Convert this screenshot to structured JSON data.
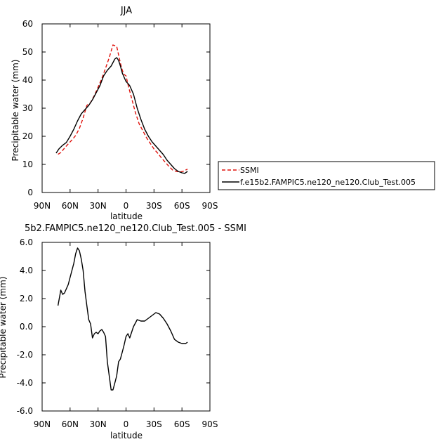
{
  "chart_data": [
    {
      "type": "line",
      "title": "JJA",
      "xlabel": "latitude",
      "ylabel": "Precipitable water (mm)",
      "xlim": [
        90,
        -90
      ],
      "ylim": [
        0,
        60
      ],
      "x_ticks": [
        90,
        60,
        30,
        0,
        -30,
        -60,
        -90
      ],
      "x_tick_labels": [
        "90N",
        "60N",
        "30N",
        "0",
        "30S",
        "60S",
        "90S"
      ],
      "y_ticks": [
        0,
        10,
        20,
        30,
        40,
        50,
        60
      ],
      "y_tick_labels": [
        "0",
        "10",
        "20",
        "30",
        "40",
        "50",
        "60"
      ],
      "legend": {
        "position": "right"
      },
      "series": [
        {
          "name": "SSMI",
          "color": "#e0120c",
          "dash": "dashed",
          "x": [
            73,
            70,
            66,
            62,
            58,
            54,
            50,
            46,
            42,
            38,
            34,
            30,
            26,
            22,
            18,
            14,
            10,
            8,
            6,
            4,
            2,
            0,
            -2,
            -6,
            -10,
            -14,
            -18,
            -22,
            -26,
            -30,
            -34,
            -38,
            -42,
            -46,
            -50,
            -54,
            -58,
            -62,
            -64,
            -66
          ],
          "y": [
            13.6,
            14.2,
            15.8,
            17.3,
            18.7,
            20.3,
            22.8,
            26.5,
            31.0,
            32.0,
            34.5,
            37.5,
            40.5,
            44.2,
            48.0,
            52.5,
            52.0,
            49.0,
            46.0,
            43.5,
            42.0,
            41.5,
            38.5,
            33.5,
            28.5,
            24.5,
            22.0,
            19.5,
            17.5,
            15.5,
            14.0,
            12.3,
            10.8,
            9.3,
            8.0,
            7.5,
            7.3,
            7.6,
            8.0,
            8.3
          ]
        },
        {
          "name": "f.e15b2.FAMPIC5.ne120_ne120.Club_Test.005",
          "color": "#000000",
          "dash": "solid",
          "x": [
            75,
            72,
            68,
            64,
            60,
            56,
            52,
            48,
            44,
            40,
            36,
            32,
            28,
            24,
            20,
            16,
            12,
            10,
            8,
            6,
            4,
            2,
            0,
            -2,
            -4,
            -8,
            -12,
            -16,
            -20,
            -24,
            -28,
            -32,
            -36,
            -40,
            -44,
            -48,
            -52,
            -56,
            -60,
            -63,
            -66
          ],
          "y": [
            14.0,
            15.5,
            16.8,
            17.8,
            20.0,
            22.5,
            25.5,
            28.0,
            29.5,
            31.0,
            33.0,
            35.5,
            38.0,
            41.5,
            43.5,
            45.0,
            47.5,
            48.0,
            47.0,
            45.0,
            42.5,
            41.0,
            39.5,
            38.8,
            38.0,
            35.0,
            30.0,
            26.0,
            22.5,
            20.0,
            18.0,
            16.5,
            15.0,
            13.5,
            11.5,
            10.0,
            8.5,
            7.5,
            7.0,
            6.8,
            7.5
          ]
        }
      ]
    },
    {
      "type": "line",
      "title": "5b2.FAMPIC5.ne120_ne120.Club_Test.005 - SSMI",
      "xlabel": "latitude",
      "ylabel": "Precipitable water (mm)",
      "xlim": [
        90,
        -90
      ],
      "ylim": [
        -6,
        6
      ],
      "x_ticks": [
        90,
        60,
        30,
        0,
        -30,
        -60,
        -90
      ],
      "x_tick_labels": [
        "90N",
        "60N",
        "30N",
        "0",
        "30S",
        "60S",
        "90S"
      ],
      "y_ticks": [
        -6,
        -4,
        -2,
        0,
        2,
        4,
        6
      ],
      "y_tick_labels": [
        "-6.0",
        "-4.0",
        "-2.0",
        "0.0",
        "2.0",
        "4.0",
        "6.0"
      ],
      "series": [
        {
          "name": "",
          "color": "#000000",
          "dash": "solid",
          "x": [
            73,
            70,
            68,
            66,
            62,
            60,
            56,
            54,
            52,
            50,
            48,
            46,
            44,
            42,
            40,
            38,
            36,
            34,
            32,
            30,
            28,
            26,
            24,
            22,
            20,
            18,
            16,
            14,
            12,
            10,
            8,
            6,
            4,
            2,
            0,
            -2,
            -4,
            -8,
            -12,
            -16,
            -20,
            -24,
            -28,
            -32,
            -36,
            -40,
            -44,
            -48,
            -52,
            -56,
            -60,
            -64,
            -66
          ],
          "y": [
            1.5,
            2.6,
            2.3,
            2.4,
            3.0,
            3.5,
            4.5,
            5.2,
            5.6,
            5.4,
            4.8,
            4.0,
            2.5,
            1.5,
            0.5,
            0.2,
            -0.8,
            -0.5,
            -0.4,
            -0.5,
            -0.3,
            -0.2,
            -0.4,
            -0.7,
            -2.5,
            -3.5,
            -4.5,
            -4.5,
            -4.0,
            -3.5,
            -2.5,
            -2.3,
            -1.8,
            -1.3,
            -0.7,
            -0.5,
            -0.8,
            0.0,
            0.5,
            0.4,
            0.4,
            0.6,
            0.8,
            1.0,
            0.9,
            0.6,
            0.2,
            -0.3,
            -0.9,
            -1.1,
            -1.2,
            -1.2,
            -1.1
          ]
        }
      ]
    }
  ]
}
